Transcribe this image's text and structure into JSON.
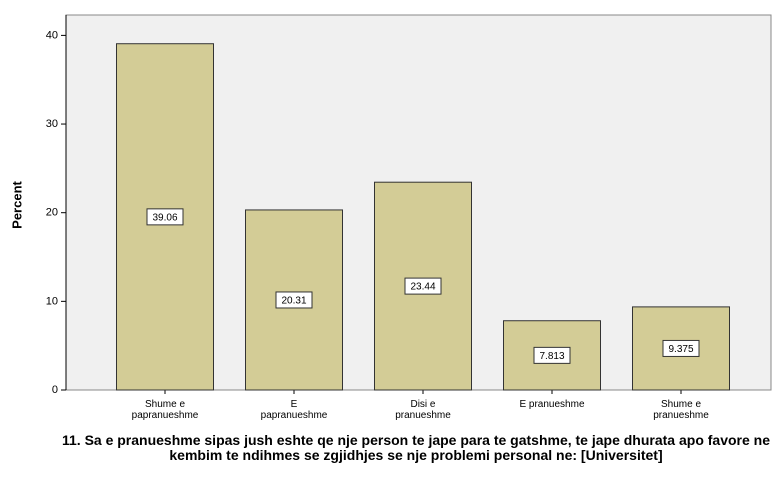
{
  "chart_data": {
    "type": "bar",
    "x_label": "11. Sa e pranueshme sipas jush eshte qe nje person te jape para te gatshme, te jape dhurata  apo favore ne kembim te ndihmes se zgjidhjes se nje problemi personal ne: [Universitet]",
    "y_label": "Percent",
    "categories": [
      "Shume e papranueshme",
      "E papranueshme",
      "Disi e pranueshme",
      "E pranueshme",
      "Shume e pranueshme"
    ],
    "values": [
      39.06,
      20.31,
      23.44,
      7.813,
      9.375
    ],
    "color": "#d3cc96",
    "ylim": [
      0,
      42.3
    ],
    "yticks": [
      0,
      10,
      20,
      30,
      40
    ],
    "grid": false
  }
}
